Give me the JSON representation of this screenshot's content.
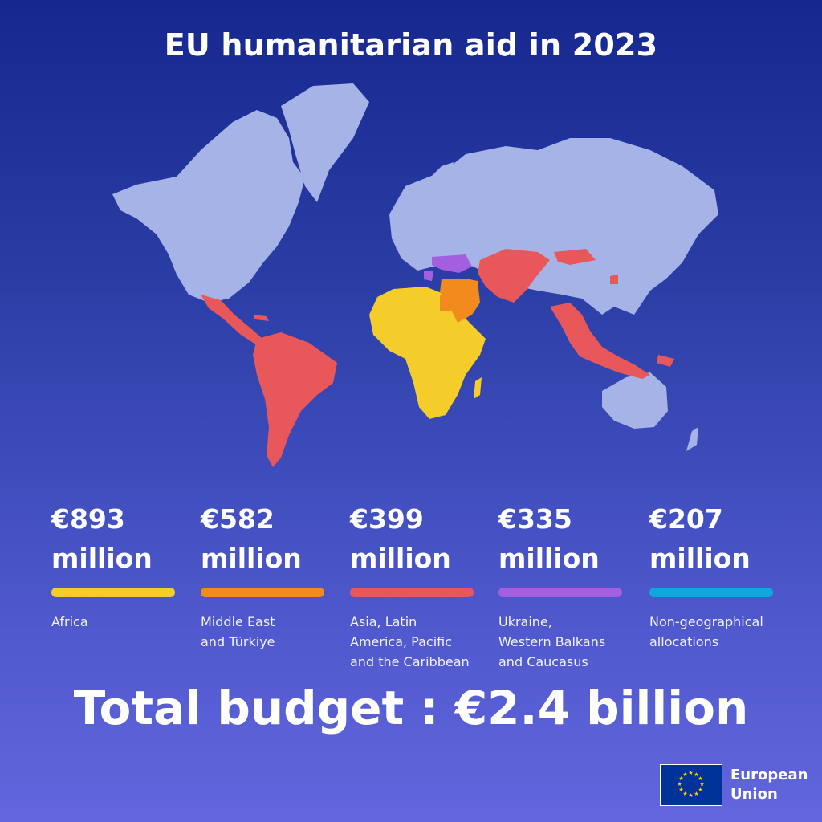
{
  "title": "EU humanitarian aid in 2023",
  "regions": [
    {
      "amount": "€893",
      "unit": "million",
      "label_lines": [
        "Africa"
      ],
      "color": "#f4cd2a"
    },
    {
      "amount": "€582",
      "unit": "million",
      "label_lines": [
        "Middle East",
        "and Türkiye"
      ],
      "color": "#f28a1e"
    },
    {
      "amount": "€399",
      "unit": "million",
      "label_lines": [
        "Asia, Latin",
        "America, Pacific",
        "and the Caribbean"
      ],
      "color": "#e8585a"
    },
    {
      "amount": "€335",
      "unit": "million",
      "label_lines": [
        "Ukraine,",
        "Western Balkans",
        "and Caucasus"
      ],
      "color": "#a35fdd"
    },
    {
      "amount": "€207",
      "unit": "million",
      "label_lines": [
        "Non-geographical",
        "allocations"
      ],
      "color": "#10a6de"
    }
  ],
  "total": "Total budget : €2.4 billion",
  "eu_logo": {
    "line1": "European",
    "line2": "Union"
  },
  "colors": {
    "land": "#a6b3e6",
    "background_top": "#16288f",
    "background_bottom": "#6366de",
    "flag_blue": "#003399",
    "flag_stars": "#ffcc00"
  }
}
